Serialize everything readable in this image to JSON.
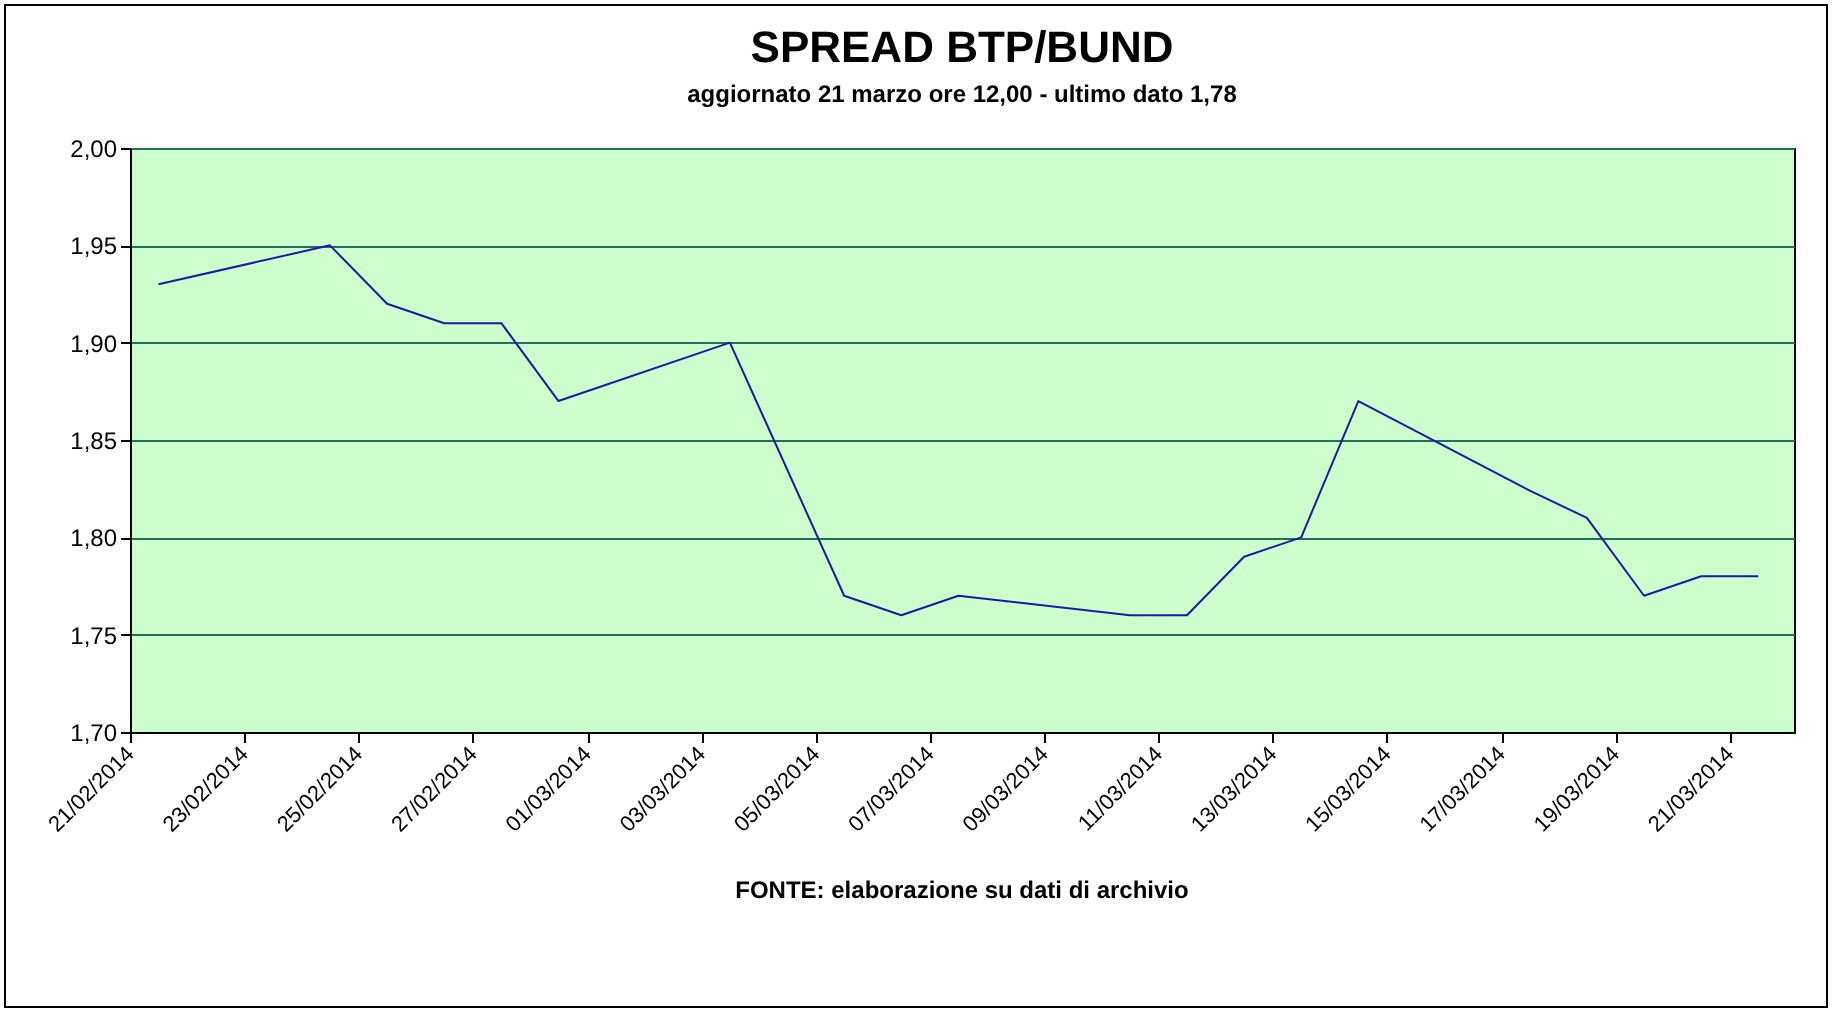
{
  "chart_data": {
    "type": "line",
    "title": "SPREAD BTP/BUND",
    "subtitle": "aggiornato 21 marzo ore 12,00 - ultimo dato 1,78",
    "annotations": [
      "FONTE: elaborazione su dati di archivio"
    ],
    "x": [
      "2014-02-21T12:00",
      "2014-02-24T12:00",
      "2014-02-25T12:00",
      "2014-02-26T12:00",
      "2014-02-27T12:00",
      "2014-02-28T12:00",
      "2014-03-03T12:00",
      "2014-03-05T12:00",
      "2014-03-06T12:00",
      "2014-03-07T12:00",
      "2014-03-10T12:00",
      "2014-03-11T12:00",
      "2014-03-12T12:00",
      "2014-03-13T12:00",
      "2014-03-14T12:00",
      "2014-03-17T12:00",
      "2014-03-18T12:00",
      "2014-03-19T12:00",
      "2014-03-20T12:00",
      "2014-03-21T12:00"
    ],
    "series": [
      {
        "color": "#1a1aa6",
        "values": [
          1.93,
          1.95,
          1.92,
          1.91,
          1.91,
          1.87,
          1.9,
          1.77,
          1.76,
          1.77,
          1.76,
          1.76,
          1.79,
          1.8,
          1.87,
          1.824,
          1.81,
          1.77,
          1.78,
          1.78
        ]
      }
    ],
    "xlim": [
      "2014-02-21",
      "2014-03-22T03:00"
    ],
    "xticks": [
      {
        "value": "2014-02-21",
        "label": "21/02/2014"
      },
      {
        "value": "2014-02-23",
        "label": "23/02/2014"
      },
      {
        "value": "2014-02-25",
        "label": "25/02/2014"
      },
      {
        "value": "2014-02-27",
        "label": "27/02/2014"
      },
      {
        "value": "2014-03-01",
        "label": "01/03/2014"
      },
      {
        "value": "2014-03-03",
        "label": "03/03/2014"
      },
      {
        "value": "2014-03-05",
        "label": "05/03/2014"
      },
      {
        "value": "2014-03-07",
        "label": "07/03/2014"
      },
      {
        "value": "2014-03-09",
        "label": "09/03/2014"
      },
      {
        "value": "2014-03-11",
        "label": "11/03/2014"
      },
      {
        "value": "2014-03-13",
        "label": "13/03/2014"
      },
      {
        "value": "2014-03-15",
        "label": "15/03/2014"
      },
      {
        "value": "2014-03-17",
        "label": "17/03/2014"
      },
      {
        "value": "2014-03-19",
        "label": "19/03/2014"
      },
      {
        "value": "2014-03-21",
        "label": "21/03/2014"
      }
    ],
    "ylim": [
      1.7,
      2.0
    ],
    "yticks": [
      {
        "value": 1.7,
        "label": "1,70"
      },
      {
        "value": 1.75,
        "label": "1,75"
      },
      {
        "value": 1.8,
        "label": "1,80"
      },
      {
        "value": 1.85,
        "label": "1,85"
      },
      {
        "value": 1.9,
        "label": "1,90"
      },
      {
        "value": 1.95,
        "label": "1,95"
      },
      {
        "value": 2.0,
        "label": "2,00"
      }
    ],
    "grid": "y",
    "marker": "none",
    "line_style": "solid"
  }
}
